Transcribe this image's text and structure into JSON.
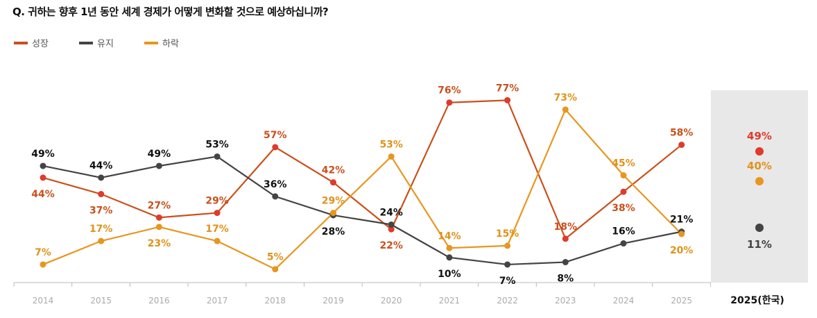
{
  "chart_data": {
    "type": "line",
    "title": "Q. 귀하는 향후 1년 동안 세계 경제가 어떻게 변화할 것으로 예상하십니까?",
    "categories": [
      "2014",
      "2015",
      "2016",
      "2017",
      "2018",
      "2019",
      "2020",
      "2021",
      "2022",
      "2023",
      "2024",
      "2025"
    ],
    "series": [
      {
        "name": "성장",
        "color": "#c9501c",
        "marker_color": "#e03a2a",
        "values": [
          44,
          37,
          27,
          29,
          57,
          42,
          22,
          76,
          77,
          18,
          38,
          58
        ]
      },
      {
        "name": "유지",
        "color": "#444444",
        "marker_color": "#444444",
        "values": [
          49,
          44,
          49,
          53,
          36,
          28,
          24,
          10,
          7,
          8,
          16,
          21
        ]
      },
      {
        "name": "하락",
        "color": "#e8961e",
        "marker_color": "#e8961e",
        "values": [
          7,
          17,
          23,
          17,
          5,
          29,
          53,
          14,
          15,
          73,
          45,
          20
        ]
      }
    ],
    "highlight": {
      "label": "2025(한국)",
      "points": [
        {
          "series": "성장",
          "value": 49,
          "color": "#e03a2a"
        },
        {
          "series": "하락",
          "value": 40,
          "color": "#e8961e"
        },
        {
          "series": "유지",
          "value": 11,
          "color": "#444444"
        }
      ]
    },
    "unit": "%",
    "legend": "top-left",
    "grid": false
  }
}
